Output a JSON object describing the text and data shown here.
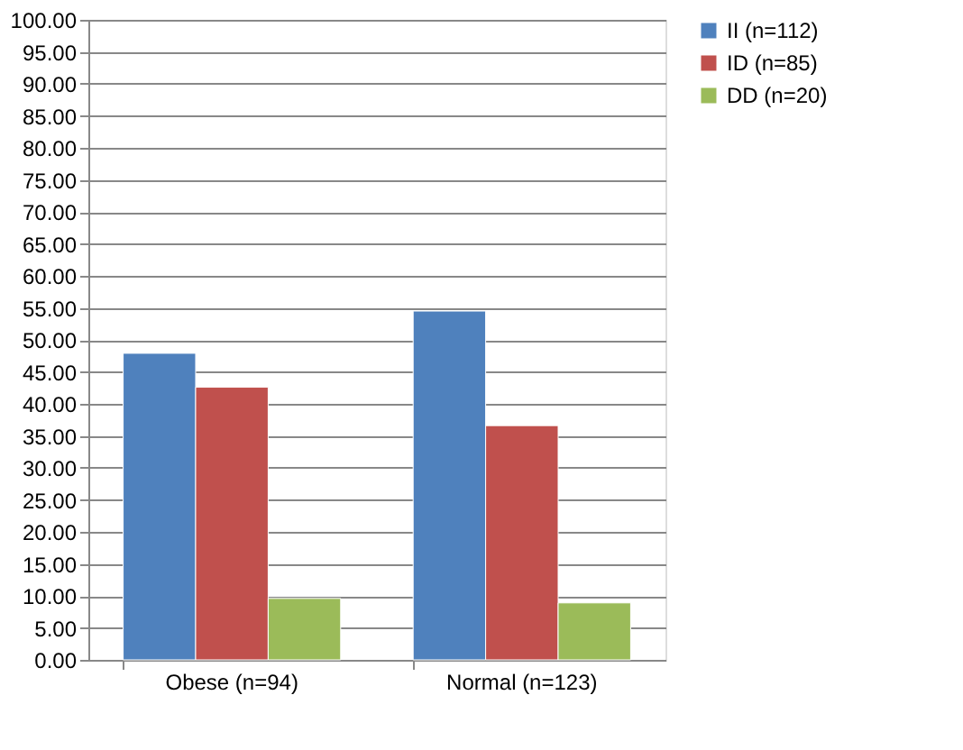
{
  "chart_data": {
    "type": "bar",
    "categories": [
      "Obese (n=94)",
      "Normal (n=123)"
    ],
    "series": [
      {
        "name": "II (n=112)",
        "color": "#4f81bd",
        "values": [
          47.9,
          54.5
        ]
      },
      {
        "name": "ID (n=85)",
        "color": "#c0504d",
        "values": [
          42.6,
          36.6
        ]
      },
      {
        "name": "DD (n=20)",
        "color": "#9bbb59",
        "values": [
          9.6,
          8.9
        ]
      }
    ],
    "ylim": [
      0,
      100
    ],
    "yticks": [
      {
        "value": 0,
        "label": "0.00"
      },
      {
        "value": 5,
        "label": "5.00"
      },
      {
        "value": 10,
        "label": "10.00"
      },
      {
        "value": 15,
        "label": "15.00"
      },
      {
        "value": 20,
        "label": "20.00"
      },
      {
        "value": 25,
        "label": "25.00"
      },
      {
        "value": 30,
        "label": "30.00"
      },
      {
        "value": 35,
        "label": "35.00"
      },
      {
        "value": 40,
        "label": "40.00"
      },
      {
        "value": 45,
        "label": "45.00"
      },
      {
        "value": 50,
        "label": "50.00"
      },
      {
        "value": 55,
        "label": "55.00"
      },
      {
        "value": 60,
        "label": "60.00"
      },
      {
        "value": 65,
        "label": "65.00"
      },
      {
        "value": 70,
        "label": "70.00"
      },
      {
        "value": 75,
        "label": "75.00"
      },
      {
        "value": 80,
        "label": "80.00"
      },
      {
        "value": 85,
        "label": "85.00"
      },
      {
        "value": 90,
        "label": "90.00"
      },
      {
        "value": 95,
        "label": "95.00"
      },
      {
        "value": 100,
        "label": "100.00"
      }
    ],
    "grid": "y",
    "legend": "right"
  }
}
